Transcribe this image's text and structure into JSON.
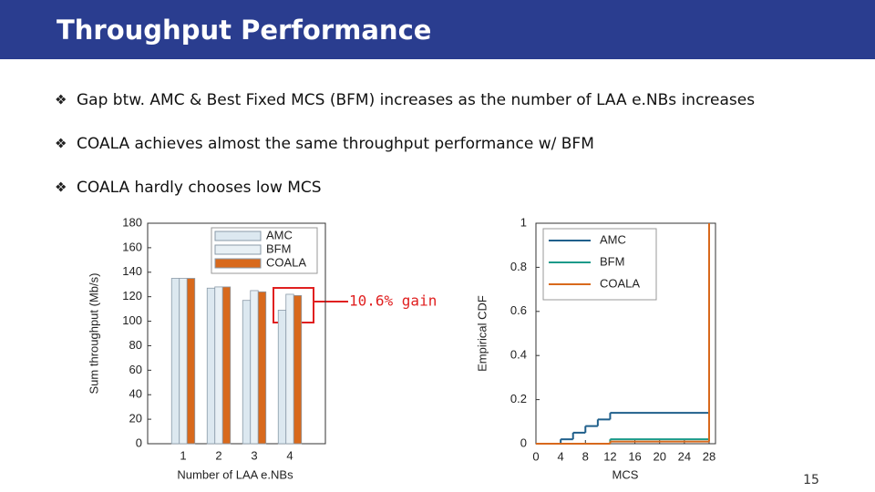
{
  "title": "Throughput Performance",
  "bullets": [
    "Gap btw. AMC & Best Fixed MCS (BFM) increases as the number of LAA e.NBs increases",
    "COALA achieves almost the same throughput performance w/ BFM",
    "COALA hardly chooses low MCS"
  ],
  "annotation": "10.6% gain",
  "page_number": "15",
  "chart_data": [
    {
      "type": "bar",
      "x_label": "Number of LAA e.NBs",
      "y_label": "Sum throughput (Mb/s)",
      "categories": [
        "1",
        "2",
        "3",
        "4"
      ],
      "series": [
        {
          "name": "AMC",
          "color": "#dce8f0",
          "values": [
            135,
            127,
            117,
            109
          ]
        },
        {
          "name": "BFM",
          "color": "#e8f0f5",
          "values": [
            135,
            128,
            125,
            122
          ]
        },
        {
          "name": "COALA",
          "color": "#d8691c",
          "values": [
            135,
            128,
            124,
            121
          ]
        }
      ],
      "ylim": [
        0,
        180
      ],
      "yticks": [
        0,
        20,
        40,
        60,
        80,
        100,
        120,
        140,
        160,
        180
      ],
      "legend": "top-left"
    },
    {
      "type": "step",
      "x_label": "MCS",
      "y_label": "Empirical CDF",
      "x": [
        0,
        4,
        6,
        8,
        10,
        12,
        28
      ],
      "series": [
        {
          "name": "AMC",
          "color": "#1f5f8b",
          "values": [
            0,
            0.02,
            0.05,
            0.08,
            0.11,
            0.14,
            1
          ]
        },
        {
          "name": "BFM",
          "color": "#1a9a8a",
          "values": [
            0,
            0,
            0,
            0,
            0,
            0.02,
            1
          ]
        },
        {
          "name": "COALA",
          "color": "#d8691c",
          "values": [
            0,
            0,
            0,
            0,
            0,
            0.01,
            1
          ]
        }
      ],
      "xlim": [
        0,
        28
      ],
      "xticks": [
        0,
        4,
        8,
        12,
        16,
        20,
        24,
        28
      ],
      "ylim": [
        0,
        1
      ],
      "yticks": [
        0,
        0.2,
        0.4,
        0.6,
        0.8,
        1
      ],
      "legend": "top-left"
    }
  ]
}
